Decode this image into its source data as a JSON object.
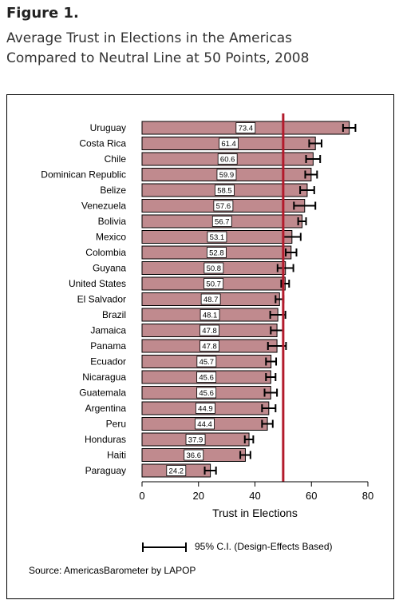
{
  "figure": {
    "label": "Figure 1.",
    "title_line1": "Average Trust in Elections in the Americas",
    "title_line2": "Compared to Neutral Line at 50 Points, 2008"
  },
  "legend": {
    "ci_label": "95% C.I. (Design-Effects Based)"
  },
  "source": "Source: AmericasBarometer by  LAPOP",
  "colors": {
    "bar": "#c08a8e",
    "reference_line": "#b31b2c",
    "error_bar": "#000000"
  },
  "chart_data": {
    "type": "bar",
    "orientation": "horizontal",
    "xlabel": "Trust in Elections",
    "xlim": [
      0,
      80
    ],
    "xticks": [
      0,
      20,
      40,
      60,
      80
    ],
    "reference_line": 50,
    "categories": [
      "Uruguay",
      "Costa Rica",
      "Chile",
      "Dominican Republic",
      "Belize",
      "Venezuela",
      "Bolivia",
      "Mexico",
      "Colombia",
      "Guyana",
      "United States",
      "El Salvador",
      "Brazil",
      "Jamaica",
      "Panama",
      "Ecuador",
      "Nicaragua",
      "Guatemala",
      "Argentina",
      "Peru",
      "Honduras",
      "Haiti",
      "Paraguay"
    ],
    "values": [
      73.4,
      61.4,
      60.6,
      59.9,
      58.5,
      57.6,
      56.7,
      53.1,
      52.8,
      50.8,
      50.7,
      48.7,
      48.1,
      47.8,
      47.8,
      45.7,
      45.6,
      45.6,
      44.9,
      44.4,
      37.9,
      36.6,
      24.2
    ],
    "value_labels": [
      "73.4",
      "61.4",
      "60.6",
      "59.9",
      "58.5",
      "57.6",
      "56.7",
      "53.1",
      "52.8",
      "50.8",
      "50.7",
      "48.7",
      "48.1",
      "47.8",
      "47.8",
      "45.7",
      "45.6",
      "45.6",
      "44.9",
      "44.4",
      "37.9",
      "36.6",
      "24.2"
    ],
    "ci_lower": [
      71.2,
      59.2,
      58.1,
      57.8,
      56.0,
      53.8,
      55.3,
      50.0,
      50.9,
      48.0,
      49.3,
      47.3,
      45.4,
      45.6,
      44.6,
      43.9,
      43.9,
      43.4,
      42.5,
      42.5,
      36.4,
      34.8,
      22.2
    ],
    "ci_upper": [
      75.6,
      63.6,
      63.1,
      62.0,
      61.0,
      61.4,
      58.1,
      56.2,
      54.7,
      53.6,
      52.1,
      50.1,
      50.8,
      50.0,
      51.0,
      47.5,
      47.3,
      47.8,
      47.3,
      46.3,
      39.4,
      38.4,
      26.2
    ]
  }
}
